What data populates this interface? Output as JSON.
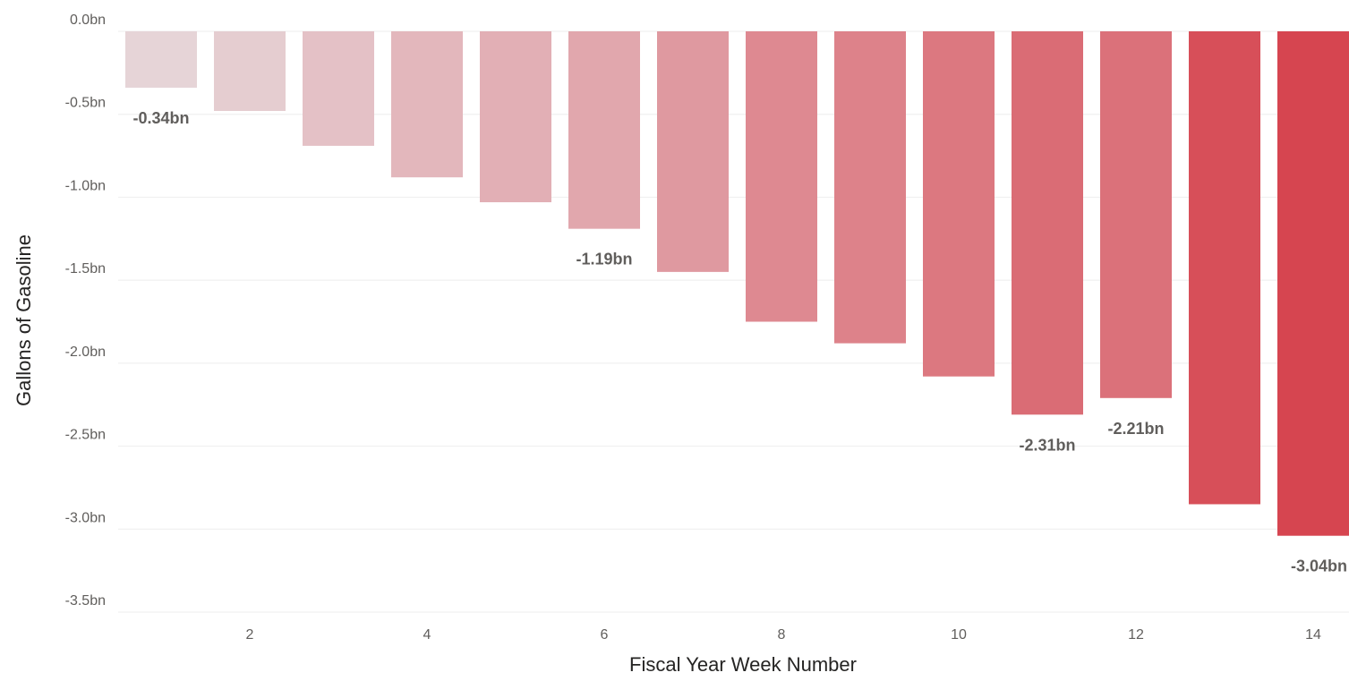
{
  "chart_data": {
    "type": "bar",
    "title": "",
    "xlabel": "Fiscal Year Week Number",
    "ylabel": "Gallons of Gasoline",
    "categories": [
      1,
      2,
      3,
      4,
      5,
      6,
      7,
      8,
      9,
      10,
      11,
      12,
      13,
      14
    ],
    "values": [
      -0.34,
      -0.48,
      -0.69,
      -0.88,
      -1.03,
      -1.19,
      -1.45,
      -1.75,
      -1.88,
      -2.08,
      -2.31,
      -2.21,
      -2.85,
      -3.04
    ],
    "data_labels": [
      {
        "index": 0,
        "text": "-0.34bn"
      },
      {
        "index": 5,
        "text": "-1.19bn"
      },
      {
        "index": 10,
        "text": "-2.31bn"
      },
      {
        "index": 11,
        "text": "-2.21bn"
      },
      {
        "index": 13,
        "text": "-3.04bn"
      }
    ],
    "ylim": [
      -3.5,
      0
    ],
    "y_ticks": [
      {
        "value": 0,
        "label": "0.0bn"
      },
      {
        "value": -0.5,
        "label": "-0.5bn"
      },
      {
        "value": -1.0,
        "label": "-1.0bn"
      },
      {
        "value": -1.5,
        "label": "-1.5bn"
      },
      {
        "value": -2.0,
        "label": "-2.0bn"
      },
      {
        "value": -2.5,
        "label": "-2.5bn"
      },
      {
        "value": -3.0,
        "label": "-3.0bn"
      },
      {
        "value": -3.5,
        "label": "-3.5bn"
      }
    ],
    "x_ticks": [
      {
        "value": 2,
        "label": "2"
      },
      {
        "value": 4,
        "label": "4"
      },
      {
        "value": 6,
        "label": "6"
      },
      {
        "value": 8,
        "label": "8"
      },
      {
        "value": 10,
        "label": "10"
      },
      {
        "value": 12,
        "label": "12"
      },
      {
        "value": 14,
        "label": "14"
      }
    ],
    "grid": true,
    "legend": "none",
    "color_light": "#e6d4d7",
    "color_dark": "#d64550"
  }
}
